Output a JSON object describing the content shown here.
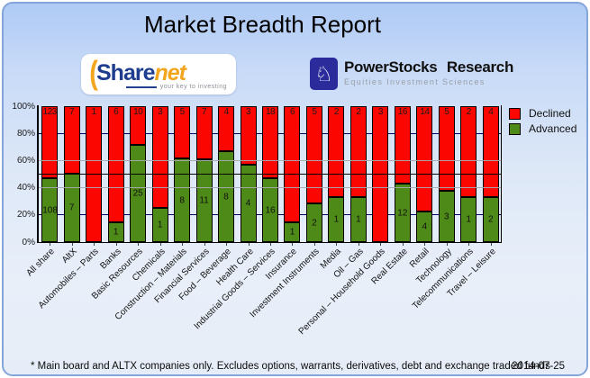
{
  "title": "Market Breadth Report",
  "logos": {
    "sharenet": {
      "paren": "(",
      "word_share": "Share",
      "word_net": "net",
      "tagline": "your key to investing"
    },
    "powerstocks": {
      "icon": "knight-chess-icon",
      "knight_glyph": "♘",
      "name": "PowerStocks Research",
      "subtitle": "Equities Investment Sciences"
    }
  },
  "legend": [
    {
      "label": "Declined",
      "color": "#fb0600"
    },
    {
      "label": "Advanced",
      "color": "#4e8a17"
    }
  ],
  "chart_data": {
    "type": "bar",
    "stacked": true,
    "normalized_percent": true,
    "title": "Market Breadth Report",
    "xlabel": "",
    "ylabel": "",
    "ylim": [
      0,
      100
    ],
    "yticks": [
      "100%",
      "80%",
      "60%",
      "40%",
      "20%",
      "0%"
    ],
    "grid": {
      "navy_lines_at": [
        80,
        20
      ],
      "gray_lines_at": [
        60,
        40
      ],
      "black_midline_at": 50
    },
    "legend_position": "top-right",
    "categories": [
      "All share",
      "AltX",
      "Automobiles – Parts",
      "Banks",
      "Basic Resources",
      "Chemicals",
      "Construction – Materials",
      "Financial Services",
      "Food – Beverage",
      "Health Care",
      "Industrial Goods – Services",
      "Insurance",
      "Investment Instruments",
      "Media",
      "Oil – Gas",
      "Personal – Household Goods",
      "Real Estate",
      "Retail",
      "Technology",
      "Telecommunications",
      "Travel – Leisure"
    ],
    "series": [
      {
        "name": "Declined",
        "color": "#fb0600",
        "values": [
          123,
          7,
          1,
          6,
          10,
          3,
          5,
          7,
          4,
          3,
          18,
          6,
          5,
          2,
          2,
          3,
          16,
          14,
          5,
          2,
          4
        ]
      },
      {
        "name": "Advanced",
        "color": "#4e8a17",
        "values": [
          108,
          7,
          0,
          1,
          25,
          1,
          8,
          11,
          8,
          4,
          16,
          1,
          2,
          1,
          1,
          0,
          12,
          4,
          3,
          1,
          2
        ]
      }
    ]
  },
  "footer": {
    "note": "* Main board and ALTX companies only. Excludes options, warrants, derivatives, debt and exchange traded funds",
    "date": "2014-07-25"
  }
}
